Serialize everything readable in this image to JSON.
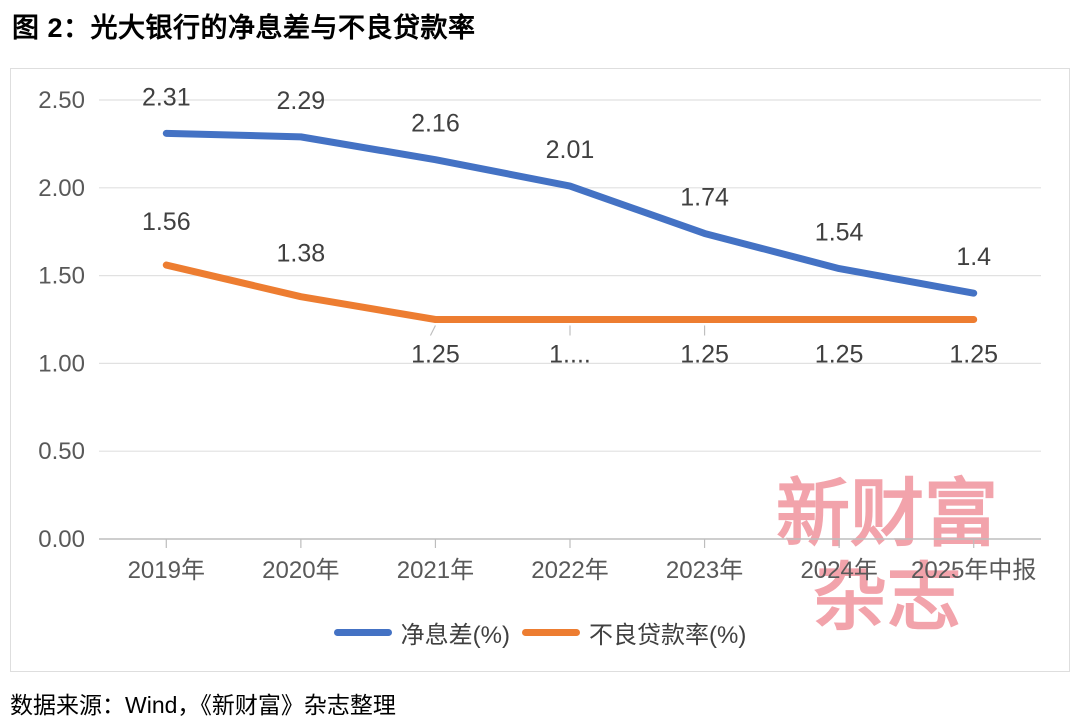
{
  "title": "图 2：光大银行的净息差与不良贷款率",
  "source_note": "数据来源：Wind，《新财富》杂志整理",
  "watermark": {
    "line1": "新财富",
    "line2": "杂志",
    "color": "#F2A3AB"
  },
  "chart_data": {
    "type": "line",
    "title": "光大银行的净息差与不良贷款率",
    "categories": [
      "2019年",
      "2020年",
      "2021年",
      "2022年",
      "2023年",
      "2024年",
      "2025年中报"
    ],
    "series": [
      {
        "name": "净息差(%)",
        "color": "#4472C4",
        "values": [
          2.31,
          2.29,
          2.16,
          2.01,
          1.74,
          1.54,
          1.4
        ],
        "labels": [
          "2.31",
          "2.29",
          "2.16",
          "2.01",
          "1.74",
          "1.54",
          "1.4"
        ],
        "label_position": "above"
      },
      {
        "name": "不良贷款率(%)",
        "color": "#ED7D31",
        "values": [
          1.56,
          1.38,
          1.25,
          1.25,
          1.25,
          1.25,
          1.25
        ],
        "labels": [
          "1.56",
          "1.38",
          "1.25",
          "1....",
          "1.25",
          "1.25",
          "1.25"
        ],
        "label_position": "above",
        "label_below_from_index": 2,
        "leader_line_indexes": [
          2,
          3,
          4
        ]
      }
    ],
    "y_axis": {
      "min": 0,
      "max": 2.5,
      "step": 0.5,
      "tick_labels": [
        "0.00",
        "0.50",
        "1.00",
        "1.50",
        "2.00",
        "2.50"
      ]
    },
    "grid": true,
    "legend_position": "bottom"
  }
}
